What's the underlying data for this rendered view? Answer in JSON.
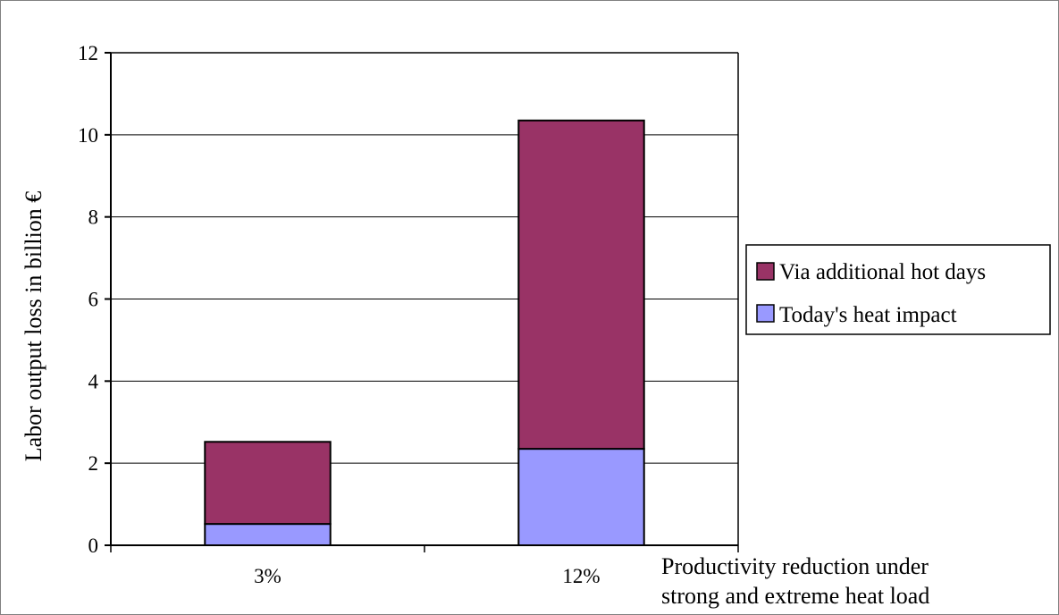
{
  "chart_data": {
    "type": "bar",
    "stacked": true,
    "categories": [
      "3%",
      "12%"
    ],
    "series": [
      {
        "name": "Today's heat impact",
        "values": [
          0.52,
          2.35
        ],
        "color": "#9999ff"
      },
      {
        "name": "Via additional hot days",
        "values": [
          2.0,
          8.0
        ],
        "color": "#993366"
      }
    ],
    "xlabel": [
      "Productivity reduction under",
      "strong and extreme heat load"
    ],
    "ylabel": "Labor output loss in billion €",
    "ylim": [
      0,
      12
    ],
    "yticks": [
      0,
      2,
      4,
      6,
      8,
      10,
      12
    ],
    "grid": true,
    "legend": {
      "placement": "right",
      "entries": [
        "Via additional hot days",
        "Today's heat impact"
      ]
    }
  }
}
